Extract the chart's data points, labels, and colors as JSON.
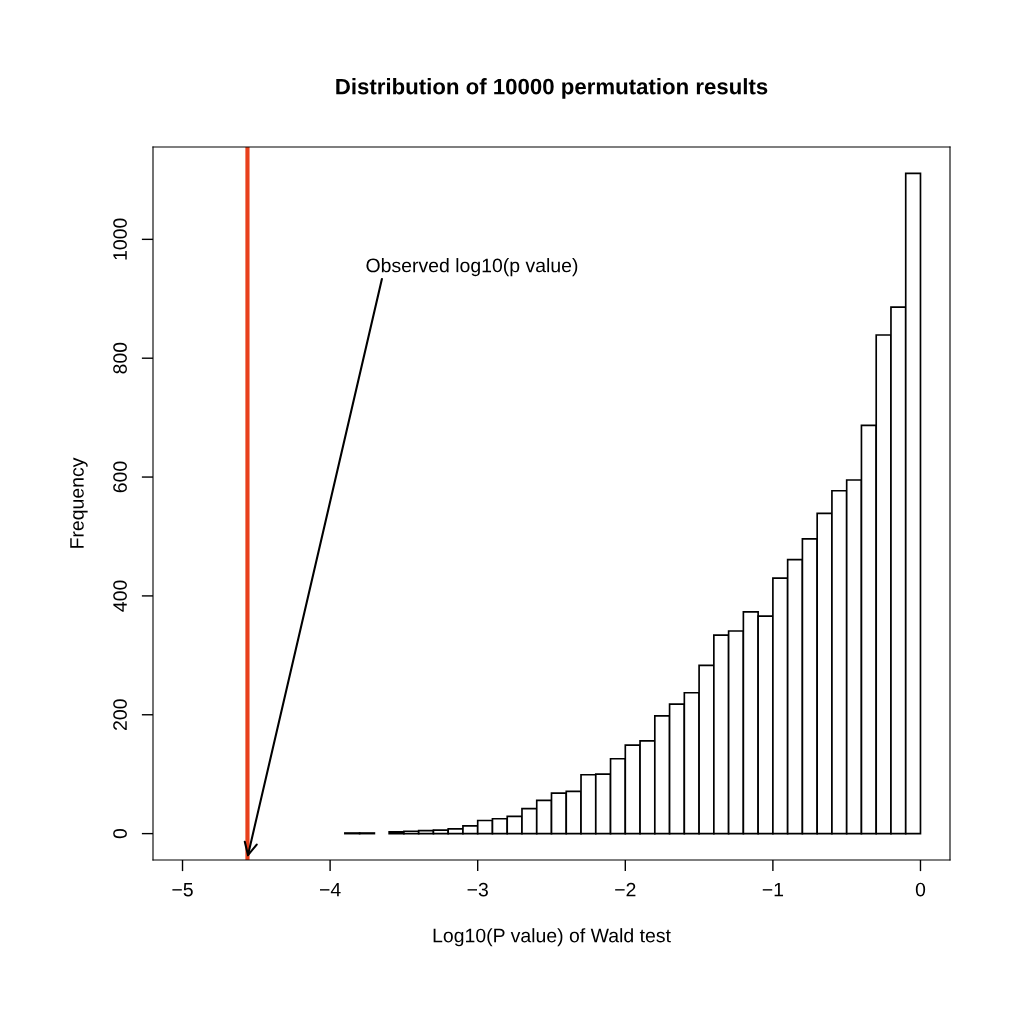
{
  "chart_data": {
    "type": "histogram",
    "title": "Distribution of 10000 permutation results",
    "xlabel": "Log10(P value) of Wald test",
    "ylabel": "Frequency",
    "bins": [
      -3.9,
      -3.8,
      -3.7,
      -3.6,
      -3.5,
      -3.4,
      -3.3,
      -3.2,
      -3.1,
      -3.0,
      -2.9,
      -2.8,
      -2.7,
      -2.6,
      -2.5,
      -2.4,
      -2.3,
      -2.2,
      -2.1,
      -2.0,
      -1.9,
      -1.8,
      -1.7,
      -1.6,
      -1.5,
      -1.4,
      -1.3,
      -1.2,
      -1.1,
      -1.0,
      -0.9,
      -0.8,
      -0.7,
      -0.6,
      -0.5,
      -0.4,
      -0.3,
      -0.2,
      -0.1,
      0
    ],
    "values": [
      1,
      1,
      0,
      3,
      4,
      5,
      6,
      8,
      13,
      22,
      25,
      29,
      42,
      56,
      68,
      71,
      99,
      100,
      126,
      149,
      156,
      198,
      218,
      237,
      283,
      334,
      341,
      373,
      366,
      430,
      461,
      496,
      539,
      577,
      595,
      687,
      839,
      886,
      1111
    ],
    "color": "#ffffff",
    "xlim": [
      -5.2,
      0.2
    ],
    "ylim": [
      -44.4,
      1155.4
    ],
    "xticks": [
      -5,
      -4,
      -3,
      -2,
      -1,
      0
    ],
    "yticks": [
      0,
      200,
      400,
      600,
      800,
      1000
    ],
    "ref_lines": [
      {
        "axis": "x",
        "value": -4.56,
        "label": null,
        "color": "#e8401c"
      }
    ],
    "annotations": [
      {
        "text": "Observed log10(p value)",
        "x": -4.56,
        "y": -40
      }
    ],
    "grid": false,
    "legend": false
  }
}
